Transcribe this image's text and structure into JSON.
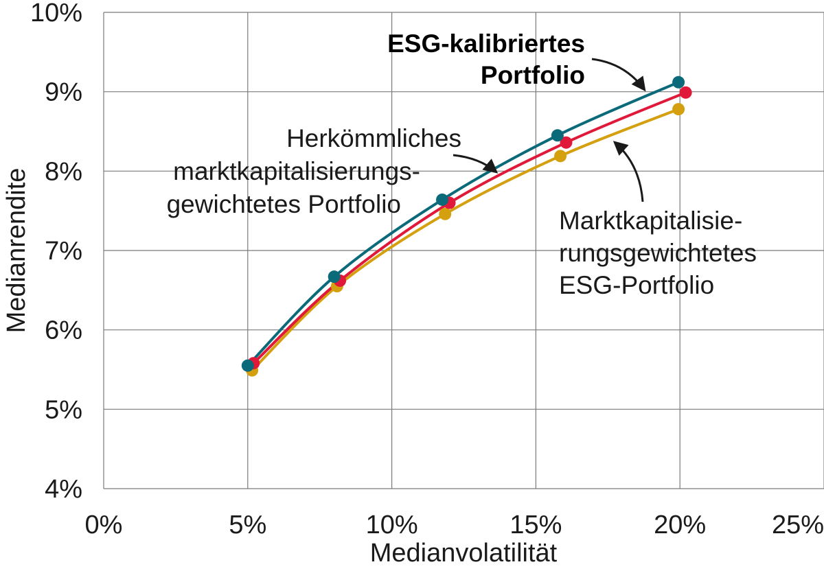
{
  "chart_data": {
    "type": "line",
    "xlabel": "Medianvolatilität",
    "ylabel": "Medianrendite",
    "xlim": [
      0,
      25
    ],
    "ylim": [
      4,
      10
    ],
    "x_ticks": [
      "0%",
      "5%",
      "10%",
      "15%",
      "20%",
      "25%"
    ],
    "y_ticks": [
      "4%",
      "5%",
      "6%",
      "7%",
      "8%",
      "9%",
      "10%"
    ],
    "grid": true,
    "series": [
      {
        "name": "ESG-kalibriertes Portfolio",
        "color": "#0b6a7a",
        "x": [
          5.0,
          8.0,
          11.75,
          15.75,
          19.95
        ],
        "y": [
          5.55,
          6.67,
          7.64,
          8.45,
          9.12
        ]
      },
      {
        "name": "Herkömmliches marktkapitalisierungsgewichtetes Portfolio",
        "color": "#e0193a",
        "x": [
          5.2,
          8.2,
          12.0,
          16.05,
          20.2
        ],
        "y": [
          5.58,
          6.62,
          7.6,
          8.36,
          8.99
        ]
      },
      {
        "name": "Marktkapitalisierungsgewichtetes ESG-Portfolio",
        "color": "#d4a00f",
        "x": [
          5.15,
          8.1,
          11.85,
          15.85,
          19.95
        ],
        "y": [
          5.49,
          6.55,
          7.46,
          8.19,
          8.78
        ]
      }
    ],
    "annotations": {
      "esg_calibrated": [
        "ESG-kalibriertes",
        "Portfolio"
      ],
      "conventional": [
        "Herkömmliches",
        "marktkapitalisierungs-",
        "gewichtetes Portfolio"
      ],
      "esg_market_cap": [
        "Marktkapitalisie-",
        "rungsgewichtetes",
        "ESG-Portfolio"
      ]
    }
  }
}
